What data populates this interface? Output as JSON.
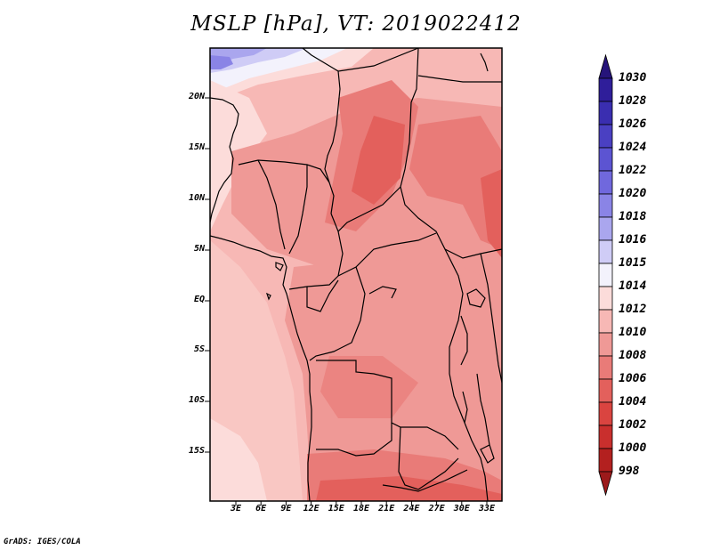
{
  "title": "MSLP [hPa], VT: 2019022412",
  "credit": "GrADS: IGES/COLA",
  "map": {
    "lat_labels": [
      "20N",
      "15N",
      "10N",
      "5N",
      "EQ",
      "5S",
      "10S",
      "15S"
    ],
    "lon_labels": [
      "3E",
      "6E",
      "9E",
      "12E",
      "15E",
      "18E",
      "21E",
      "24E",
      "27E",
      "30E",
      "33E"
    ],
    "lon_range": [
      0,
      35
    ],
    "lat_range": [
      -20,
      24
    ]
  },
  "colorbar": {
    "labels": [
      "1030",
      "1028",
      "1026",
      "1024",
      "1022",
      "1020",
      "1018",
      "1016",
      "1015",
      "1014",
      "1012",
      "1010",
      "1008",
      "1006",
      "1004",
      "1002",
      "1000",
      "998"
    ],
    "colors": [
      "#26147a",
      "#2f1e9a",
      "#3a2eb0",
      "#4a40c2",
      "#5c54d2",
      "#7068dd",
      "#8a84e6",
      "#aaa6ee",
      "#cfccf6",
      "#f3f2fc",
      "#fcdcda",
      "#f7b8b5",
      "#ef9996",
      "#e97b78",
      "#e3605c",
      "#da4440",
      "#c92f2d",
      "#b3201f",
      "#9c1a1b"
    ]
  }
}
